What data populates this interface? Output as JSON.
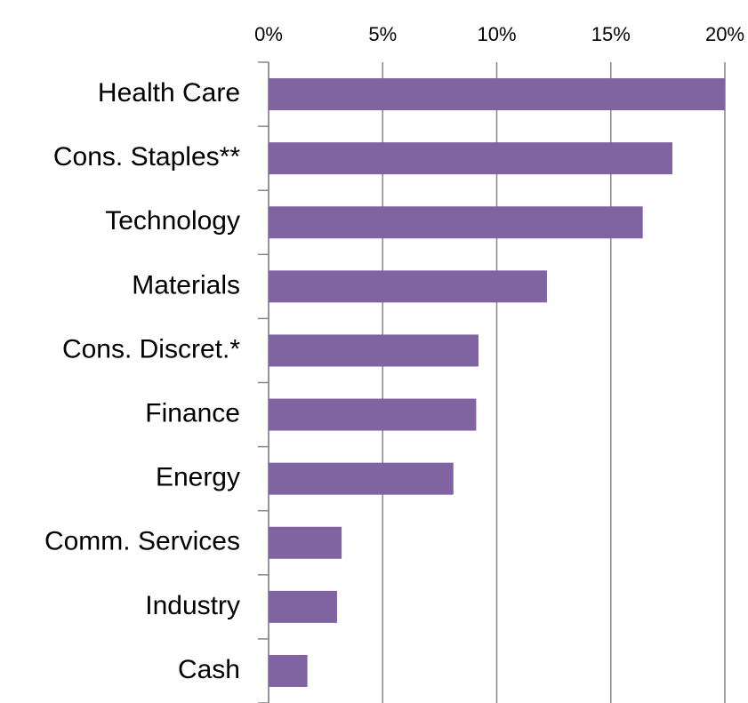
{
  "chart_data": {
    "type": "barh",
    "categories": [
      "Health Care",
      "Cons. Staples**",
      "Technology",
      "Materials",
      "Cons. Discret.*",
      "Finance",
      "Energy",
      "Comm. Services",
      "Industry",
      "Cash"
    ],
    "values": [
      20.0,
      17.7,
      16.4,
      12.2,
      9.2,
      9.1,
      8.1,
      3.2,
      3.0,
      1.7
    ],
    "color": "#8064a2",
    "xlim": [
      0,
      20
    ],
    "xticks": [
      {
        "value": 0,
        "label": "0%"
      },
      {
        "value": 5,
        "label": "5%"
      },
      {
        "value": 10,
        "label": "10%"
      },
      {
        "value": 15,
        "label": "15%"
      },
      {
        "value": 20,
        "label": "20%"
      }
    ],
    "grid": true
  }
}
